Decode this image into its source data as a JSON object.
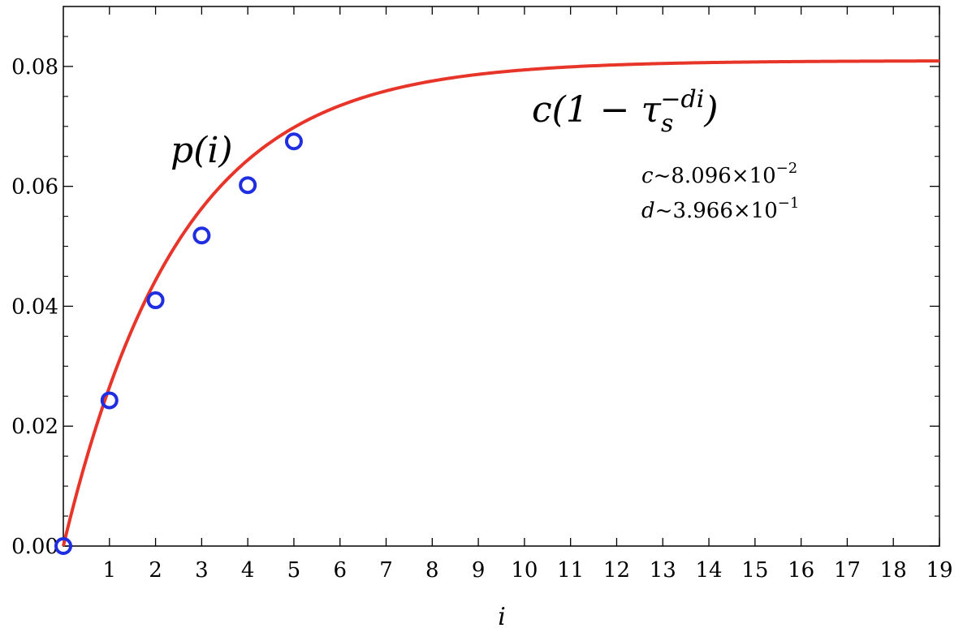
{
  "chart_data": {
    "type": "scatter",
    "xlabel": "i",
    "ylabel": "",
    "xlim": [
      0,
      19
    ],
    "ylim": [
      0,
      0.09
    ],
    "x_ticks": [
      "1",
      "2",
      "3",
      "4",
      "5",
      "6",
      "7",
      "8",
      "9",
      "10",
      "11",
      "12",
      "13",
      "14",
      "15",
      "16",
      "17",
      "18",
      "19"
    ],
    "y_ticks": [
      "0.00",
      "0.02",
      "0.04",
      "0.06",
      "0.08"
    ],
    "grid": false,
    "series": [
      {
        "name": "p(i)",
        "type": "scatter",
        "color": "#1f2ee0",
        "x": [
          0,
          1,
          2,
          3,
          4,
          5
        ],
        "y": [
          0.0,
          0.0243,
          0.041,
          0.0518,
          0.0602,
          0.0675
        ]
      },
      {
        "name": "c(1 − τs^−di)",
        "type": "line",
        "color": "#e8352a",
        "c": 0.08096,
        "d": 0.3966
      }
    ],
    "annotations": {
      "series_label": "p(i)",
      "fit_label_prefix": "c(1 − τ",
      "fit_label_sub": "s",
      "fit_label_sup": "−di",
      "fit_label_suffix": ")",
      "c_name": "c",
      "c_value": "~8.096×10",
      "c_exp": "−2",
      "d_name": "d",
      "d_value": "~3.966×10",
      "d_exp": "−1"
    }
  }
}
